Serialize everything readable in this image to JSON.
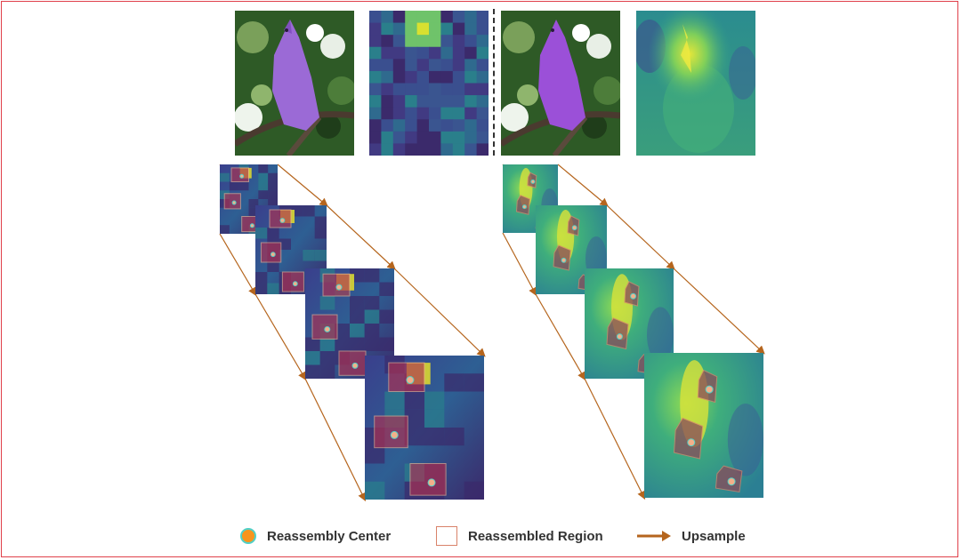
{
  "legend": {
    "center_label": "Reassembly Center",
    "region_label": "Reassembled Region",
    "upsample_label": "Upsample"
  },
  "colors": {
    "frame": "#e0404a",
    "upsample_arrow": "#b5651d",
    "center_fill": "#f7941d",
    "center_ring": "#4fd0c7",
    "region_outline": "#d9826a",
    "map_dark": "#3b2a6b",
    "map_mid": "#2f8a8c",
    "map_bright": "#d8e030",
    "bird_overlay": "#9b5de5",
    "foliage": "#2e6b2a"
  },
  "top_row": [
    {
      "name": "bird-image-left",
      "kind": "photo"
    },
    {
      "name": "heatmap-blocky",
      "kind": "heatmap"
    },
    {
      "name": "bird-image-right",
      "kind": "photo"
    },
    {
      "name": "heatmap-smooth",
      "kind": "heatmap"
    }
  ]
}
